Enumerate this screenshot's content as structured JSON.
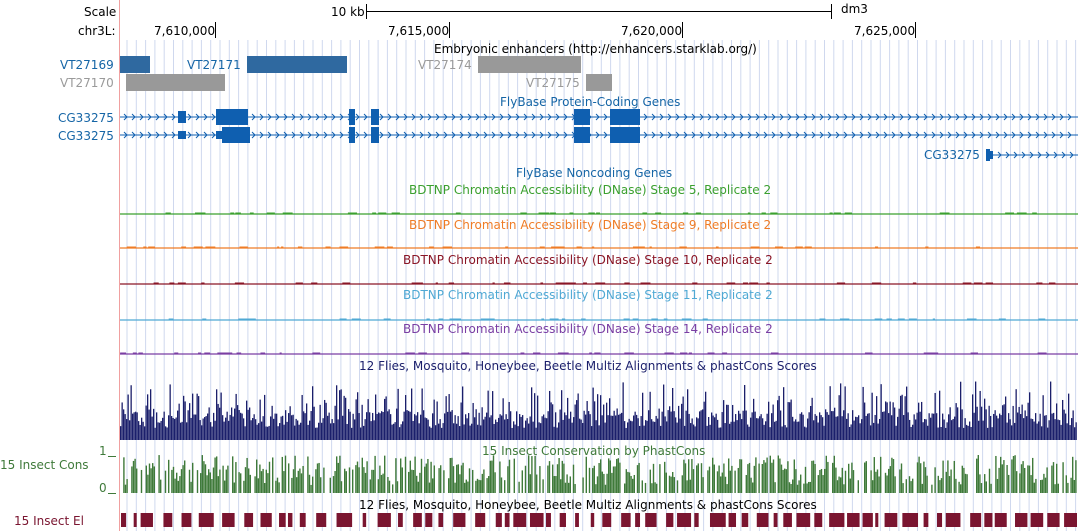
{
  "colors": {
    "blue_link": "#1565a6",
    "gray": "#9a9a9a",
    "gene_blue": "#0f5fb0",
    "dnase_s5": "#3ba02f",
    "dnase_s9": "#ef7c26",
    "dnase_s10": "#8a1626",
    "dnase_s11": "#4fa9d4",
    "dnase_s14": "#7a3ea3",
    "multiz": "#1b1f6b",
    "phastcons": "#3f7a3a",
    "elements": "#7a1530",
    "guide": "#cfd8ee",
    "left_border": "#f0a0a0"
  },
  "ruler": {
    "scale_label": "Scale",
    "chrom_label": "chr3L:",
    "scale_text": "10 kb",
    "assembly": "dm3",
    "ticks": [
      "7,610,000",
      "7,615,000",
      "7,620,000",
      "7,625,000"
    ]
  },
  "enhancers": {
    "title": "Embryonic enhancers (http://enhancers.starklab.org/)",
    "items": [
      {
        "name": "VT27169",
        "style": "blue"
      },
      {
        "name": "VT27170",
        "style": "gray"
      },
      {
        "name": "VT27171",
        "style": "blue"
      },
      {
        "name": "VT27174",
        "style": "gray"
      },
      {
        "name": "VT27175",
        "style": "gray"
      }
    ]
  },
  "protein_genes": {
    "title": "FlyBase Protein-Coding Genes",
    "transcripts": [
      "CG33275",
      "CG33275",
      "CG33275"
    ]
  },
  "noncoding": {
    "title": "FlyBase Noncoding Genes"
  },
  "dnase": [
    {
      "title": "BDTNP Chromatin Accessibility (DNase) Stage 5, Replicate 2",
      "color_key": "dnase_s5"
    },
    {
      "title": "BDTNP Chromatin Accessibility (DNase) Stage 9, Replicate 2",
      "color_key": "dnase_s9"
    },
    {
      "title": "BDTNP Chromatin Accessibility (DNase) Stage 10, Replicate 2",
      "color_key": "dnase_s10"
    },
    {
      "title": "BDTNP Chromatin Accessibility (DNase) Stage 11, Replicate 2",
      "color_key": "dnase_s11"
    },
    {
      "title": "BDTNP Chromatin Accessibility (DNase) Stage 14, Replicate 2",
      "color_key": "dnase_s14"
    }
  ],
  "multiz": {
    "title": "12 Flies, Mosquito, Honeybee, Beetle Multiz Alignments & phastCons Scores"
  },
  "phastcons": {
    "title": "15 Insect Conservation by PhastCons",
    "side_label": "15 Insect Cons",
    "axis_max": "1",
    "axis_min": "0"
  },
  "elements": {
    "title": "12 Flies, Mosquito, Honeybee, Beetle Multiz Alignments & phastCons Scores",
    "side_label": "15 Insect El"
  }
}
